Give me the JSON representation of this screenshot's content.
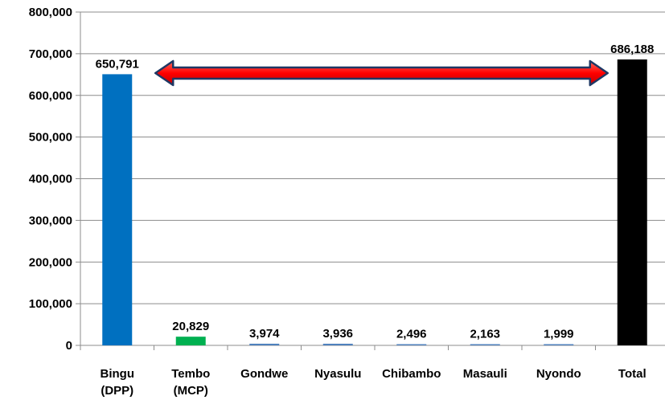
{
  "chart_data": {
    "type": "bar",
    "categories": [
      [
        "Bingu",
        "(DPP)"
      ],
      [
        "Tembo",
        "(MCP)"
      ],
      [
        "Gondwe"
      ],
      [
        "Nyasulu"
      ],
      [
        "Chibambo"
      ],
      [
        "Masauli"
      ],
      [
        "Nyondo"
      ],
      [
        "Total"
      ]
    ],
    "values": [
      650791,
      20829,
      3974,
      3936,
      2496,
      2163,
      1999,
      686188
    ],
    "data_labels": [
      "650,791",
      "20,829",
      "3,974",
      "3,936",
      "2,496",
      "2,163",
      "1,999",
      "686,188"
    ],
    "bar_colors": [
      "#0070c0",
      "#00b050",
      "#4f81bd",
      "#4f81bd",
      "#4f81bd",
      "#4f81bd",
      "#4f81bd",
      "#000000"
    ],
    "ylim": [
      0,
      800000
    ],
    "y_ticks": [
      0,
      100000,
      200000,
      300000,
      400000,
      500000,
      600000,
      700000,
      800000
    ],
    "y_tick_labels": [
      "0",
      "100,000",
      "200,000",
      "300,000",
      "400,000",
      "500,000",
      "600,000",
      "700,000",
      "800,000"
    ],
    "grid": true,
    "legend": false,
    "title": "",
    "xlabel": "",
    "ylabel": "",
    "annotation": {
      "type": "double-arrow",
      "from_category": 0,
      "to_category": 7,
      "y_value": 650000,
      "fill": "#ff0000",
      "outline": "#1f3864"
    }
  }
}
